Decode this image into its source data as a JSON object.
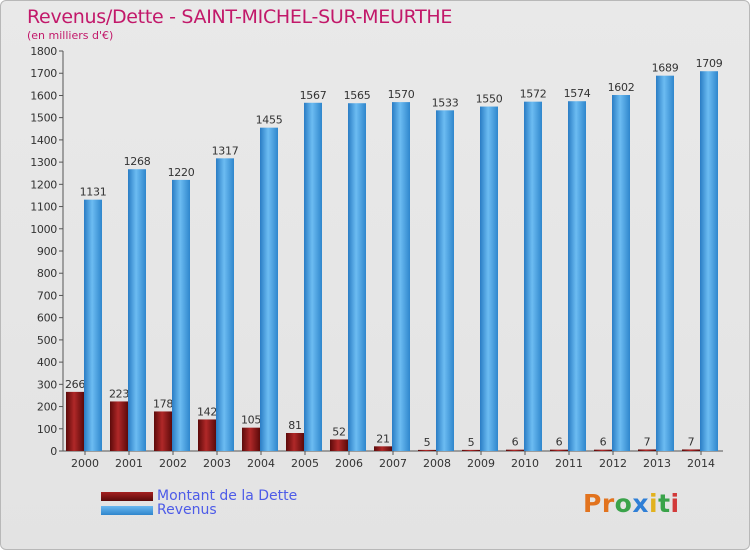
{
  "chart_data": {
    "type": "bar",
    "title": "Revenus/Dette - SAINT-MICHEL-SUR-MEURTHE",
    "subtitle": "(en milliers d'€)",
    "categories": [
      "2000",
      "2001",
      "2002",
      "2003",
      "2004",
      "2005",
      "2006",
      "2007",
      "2008",
      "2009",
      "2010",
      "2011",
      "2012",
      "2013",
      "2014"
    ],
    "series": [
      {
        "name": "Montant de la Dette",
        "color": "#7a1010",
        "values": [
          266,
          223,
          178,
          142,
          105,
          81,
          52,
          21,
          5,
          5,
          6,
          6,
          6,
          7,
          7
        ]
      },
      {
        "name": "Revenus",
        "color": "#4aa3e8",
        "values": [
          1131,
          1268,
          1220,
          1317,
          1455,
          1567,
          1565,
          1570,
          1533,
          1550,
          1572,
          1574,
          1602,
          1689,
          1709
        ]
      }
    ],
    "ylim": [
      0,
      1800
    ],
    "yticks": [
      0,
      100,
      200,
      300,
      400,
      500,
      600,
      700,
      800,
      900,
      1000,
      1100,
      1200,
      1300,
      1400,
      1500,
      1600,
      1700,
      1800
    ],
    "ytick_labels": [
      "0",
      "100",
      "200",
      "300",
      "400",
      "500",
      "600",
      "700",
      "800",
      "900",
      "1000",
      "1100",
      "1200",
      "1300",
      "1400",
      "1500",
      "1600",
      "1700",
      "1800"
    ],
    "grid": false,
    "legend_position": "bottom-left"
  },
  "legend": {
    "items": [
      {
        "label": "Montant de la Dette",
        "color": "#7a1010"
      },
      {
        "label": "Revenus",
        "color": "#4aa3e8"
      }
    ]
  },
  "brand": {
    "letters": [
      "P",
      "r",
      "o",
      "x",
      "i",
      "t",
      "i"
    ],
    "colors": [
      "#e2731e",
      "#e2731e",
      "#3aa34a",
      "#2f7fd6",
      "#e2b21e",
      "#3aa34a",
      "#d23a3a"
    ]
  }
}
